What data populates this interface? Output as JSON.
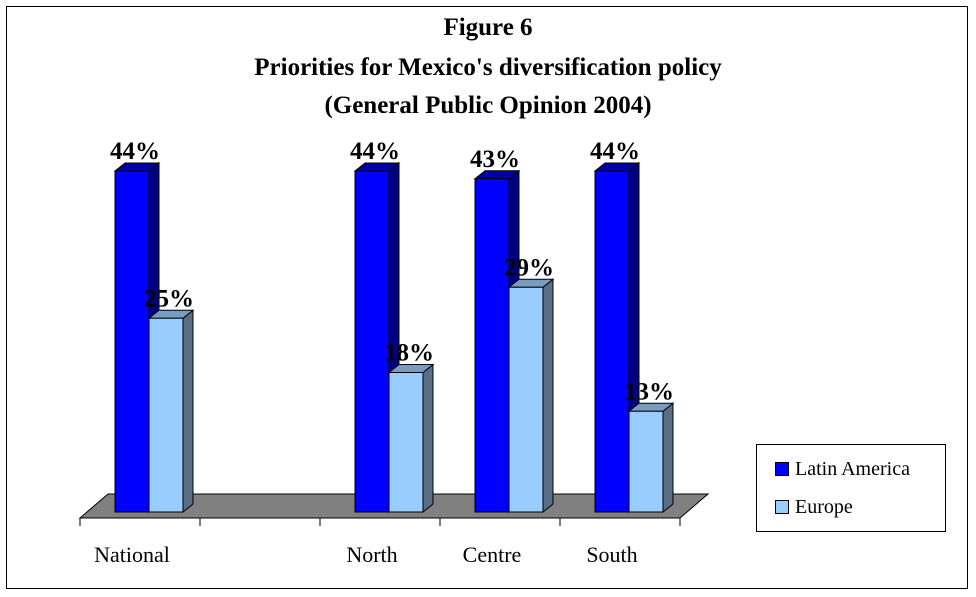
{
  "chart_data": {
    "type": "bar",
    "title_lines": [
      "Figure 6",
      "Priorities for Mexico's diversification policy",
      "(General Public Opinion 2004)"
    ],
    "categories": [
      "National",
      "",
      "North",
      "Centre",
      "South"
    ],
    "series": [
      {
        "name": "Latin America",
        "values": [
          44,
          null,
          44,
          43,
          44
        ],
        "labels": [
          "44%",
          "",
          "44%",
          "43%",
          "44%"
        ]
      },
      {
        "name": "Europe",
        "values": [
          25,
          null,
          18,
          29,
          13
        ],
        "labels": [
          "25%",
          "",
          "18%",
          "29%",
          "13%"
        ]
      }
    ],
    "ylim": [
      0,
      50
    ],
    "grid": false,
    "legend": "right",
    "colors": {
      "latin_america": "#0000ff",
      "latin_america_side": "#000080",
      "latin_america_top": "#0000a8",
      "europe": "#99ccff",
      "europe_side": "#5a6f86",
      "europe_top": "#7a9cc0",
      "floor": "#808080"
    }
  }
}
